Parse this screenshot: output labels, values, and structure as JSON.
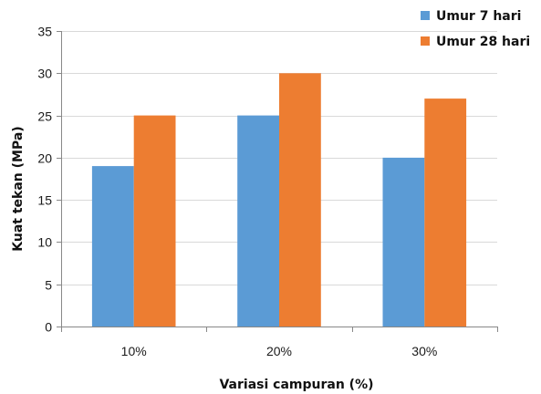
{
  "chart_data": {
    "type": "bar",
    "title": "",
    "xlabel": "Variasi campuran (%)",
    "ylabel": "Kuat tekan (MPa)",
    "categories": [
      "10%",
      "20%",
      "30%"
    ],
    "series": [
      {
        "name": "Umur 7 hari",
        "values": [
          19,
          25,
          20
        ],
        "color": "#5B9BD5"
      },
      {
        "name": "Umur 28 hari",
        "values": [
          25,
          30,
          27
        ],
        "color": "#ED7D31"
      }
    ],
    "ylim": [
      0,
      35
    ],
    "yticks": [
      0,
      5,
      10,
      15,
      20,
      25,
      30,
      35
    ],
    "grid": true,
    "legend_position": "top-right"
  }
}
